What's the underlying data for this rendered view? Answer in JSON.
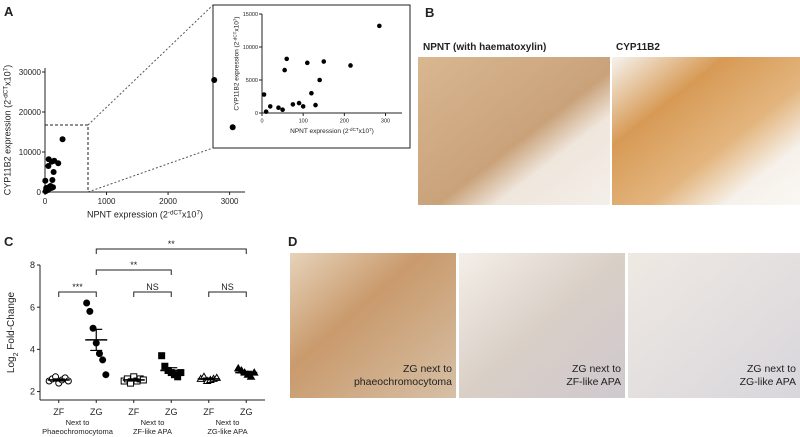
{
  "panels": {
    "A": "A",
    "B": "B",
    "C": "C",
    "D": "D"
  },
  "chart_data": [
    {
      "type": "scatter",
      "xlabel": [
        {
          "text": "NPNT expression (2"
        },
        {
          "text": "-dCT",
          "sup": true
        },
        {
          "text": "x10"
        },
        {
          "text": "7",
          "sup": true
        },
        {
          "text": ")"
        }
      ],
      "ylabel": [
        {
          "text": "CYP11B2 expression (2"
        },
        {
          "text": "-dCT",
          "sup": true
        },
        {
          "text": "x10"
        },
        {
          "text": "7",
          "sup": true
        },
        {
          "text": ")"
        }
      ],
      "x": [
        2750,
        3050,
        5,
        20,
        40,
        55,
        60,
        75,
        90,
        100,
        110,
        120,
        140,
        150,
        215,
        285,
        50,
        130,
        10
      ],
      "y": [
        28000,
        16200,
        2800,
        1000,
        800,
        6500,
        8200,
        1300,
        1500,
        1000,
        7600,
        3000,
        5000,
        7800,
        7200,
        13200,
        500,
        1200,
        200
      ],
      "color": "#000000",
      "xlim": [
        0,
        3250
      ],
      "ylim": [
        0,
        31000
      ],
      "xticks": [
        0,
        1000,
        2000,
        3000
      ],
      "yticks": [
        0,
        10000,
        20000,
        30000
      ]
    },
    {
      "type": "scatter",
      "xlabel": [
        {
          "text": "NPNT expression (2"
        },
        {
          "text": "-dCT",
          "sup": true
        },
        {
          "text": "x10"
        },
        {
          "text": "7",
          "sup": true
        },
        {
          "text": ")"
        }
      ],
      "ylabel": [
        {
          "text": "CYP11B2 expression (2"
        },
        {
          "text": "-dCT",
          "sup": true
        },
        {
          "text": "x10"
        },
        {
          "text": "7",
          "sup": true
        },
        {
          "text": ")"
        }
      ],
      "x": [
        5,
        20,
        40,
        55,
        60,
        75,
        90,
        100,
        110,
        120,
        140,
        150,
        215,
        285,
        50,
        130,
        10
      ],
      "y": [
        2800,
        1000,
        800,
        6500,
        8200,
        1300,
        1500,
        1000,
        7600,
        3000,
        5000,
        7800,
        7200,
        13200,
        500,
        1200,
        200
      ],
      "color": "#000000",
      "xlim": [
        0,
        340
      ],
      "ylim": [
        0,
        15000
      ],
      "xticks": [
        0,
        100,
        200,
        300
      ],
      "yticks": [
        0,
        5000,
        10000,
        15000
      ]
    },
    {
      "type": "dot",
      "ylabel": [
        {
          "text": "Log"
        },
        {
          "text": "2",
          "sub": true
        },
        {
          "text": " Fold-Change"
        }
      ],
      "categories": [
        "ZF",
        "ZG",
        "ZF",
        "ZG",
        "ZF",
        "ZG"
      ],
      "groups": [
        {
          "lines": [
            "Next to",
            "Phaeochromocytoma"
          ]
        },
        {
          "lines": [
            "Next to",
            "ZF-like APA"
          ]
        },
        {
          "lines": [
            "Next to",
            "ZG-like APA"
          ]
        }
      ],
      "points": [
        [
          2.5,
          2.6,
          2.7,
          2.4,
          2.55,
          2.65,
          2.5
        ],
        [
          6.2,
          5.8,
          5.0,
          4.3,
          3.8,
          3.5,
          2.8
        ],
        [
          2.5,
          2.6,
          2.4,
          2.7,
          2.5,
          2.6,
          2.55
        ],
        [
          3.7,
          3.2,
          3.0,
          2.9,
          2.8,
          2.7,
          2.9
        ],
        [
          2.6,
          2.7,
          2.5,
          2.55,
          2.6,
          2.65
        ],
        [
          3.1,
          3.0,
          2.9,
          2.8,
          2.7,
          2.9
        ]
      ],
      "means": [
        2.55,
        4.45,
        2.55,
        3.0,
        2.6,
        2.9
      ],
      "sem": [
        0.05,
        0.5,
        0.05,
        0.13,
        0.04,
        0.06
      ],
      "markers": [
        "circle",
        "circle",
        "square",
        "square",
        "triangle",
        "triangle"
      ],
      "filled": [
        false,
        true,
        false,
        true,
        false,
        true
      ],
      "color": "#000000",
      "brackets": [
        {
          "from": 0,
          "to": 1,
          "label": "***"
        },
        {
          "from": 1,
          "to": 3,
          "label": "**"
        },
        {
          "from": 1,
          "to": 5,
          "label": "**"
        },
        {
          "from": 2,
          "to": 3,
          "label": "NS"
        },
        {
          "from": 4,
          "to": 5,
          "label": "NS"
        }
      ],
      "ylim": [
        1.6,
        8
      ],
      "yticks": [
        2,
        4,
        6,
        8
      ]
    }
  ],
  "images": {
    "B": [
      {
        "label": "NPNT (with haematoxylin)"
      },
      {
        "label": "CYP11B2"
      }
    ],
    "D": [
      {
        "lines": [
          "ZG next to",
          "phaeochromocytoma"
        ]
      },
      {
        "lines": [
          "ZG next to",
          "ZF-like APA"
        ]
      },
      {
        "lines": [
          "ZG next to",
          "ZG-like APA"
        ]
      }
    ]
  }
}
